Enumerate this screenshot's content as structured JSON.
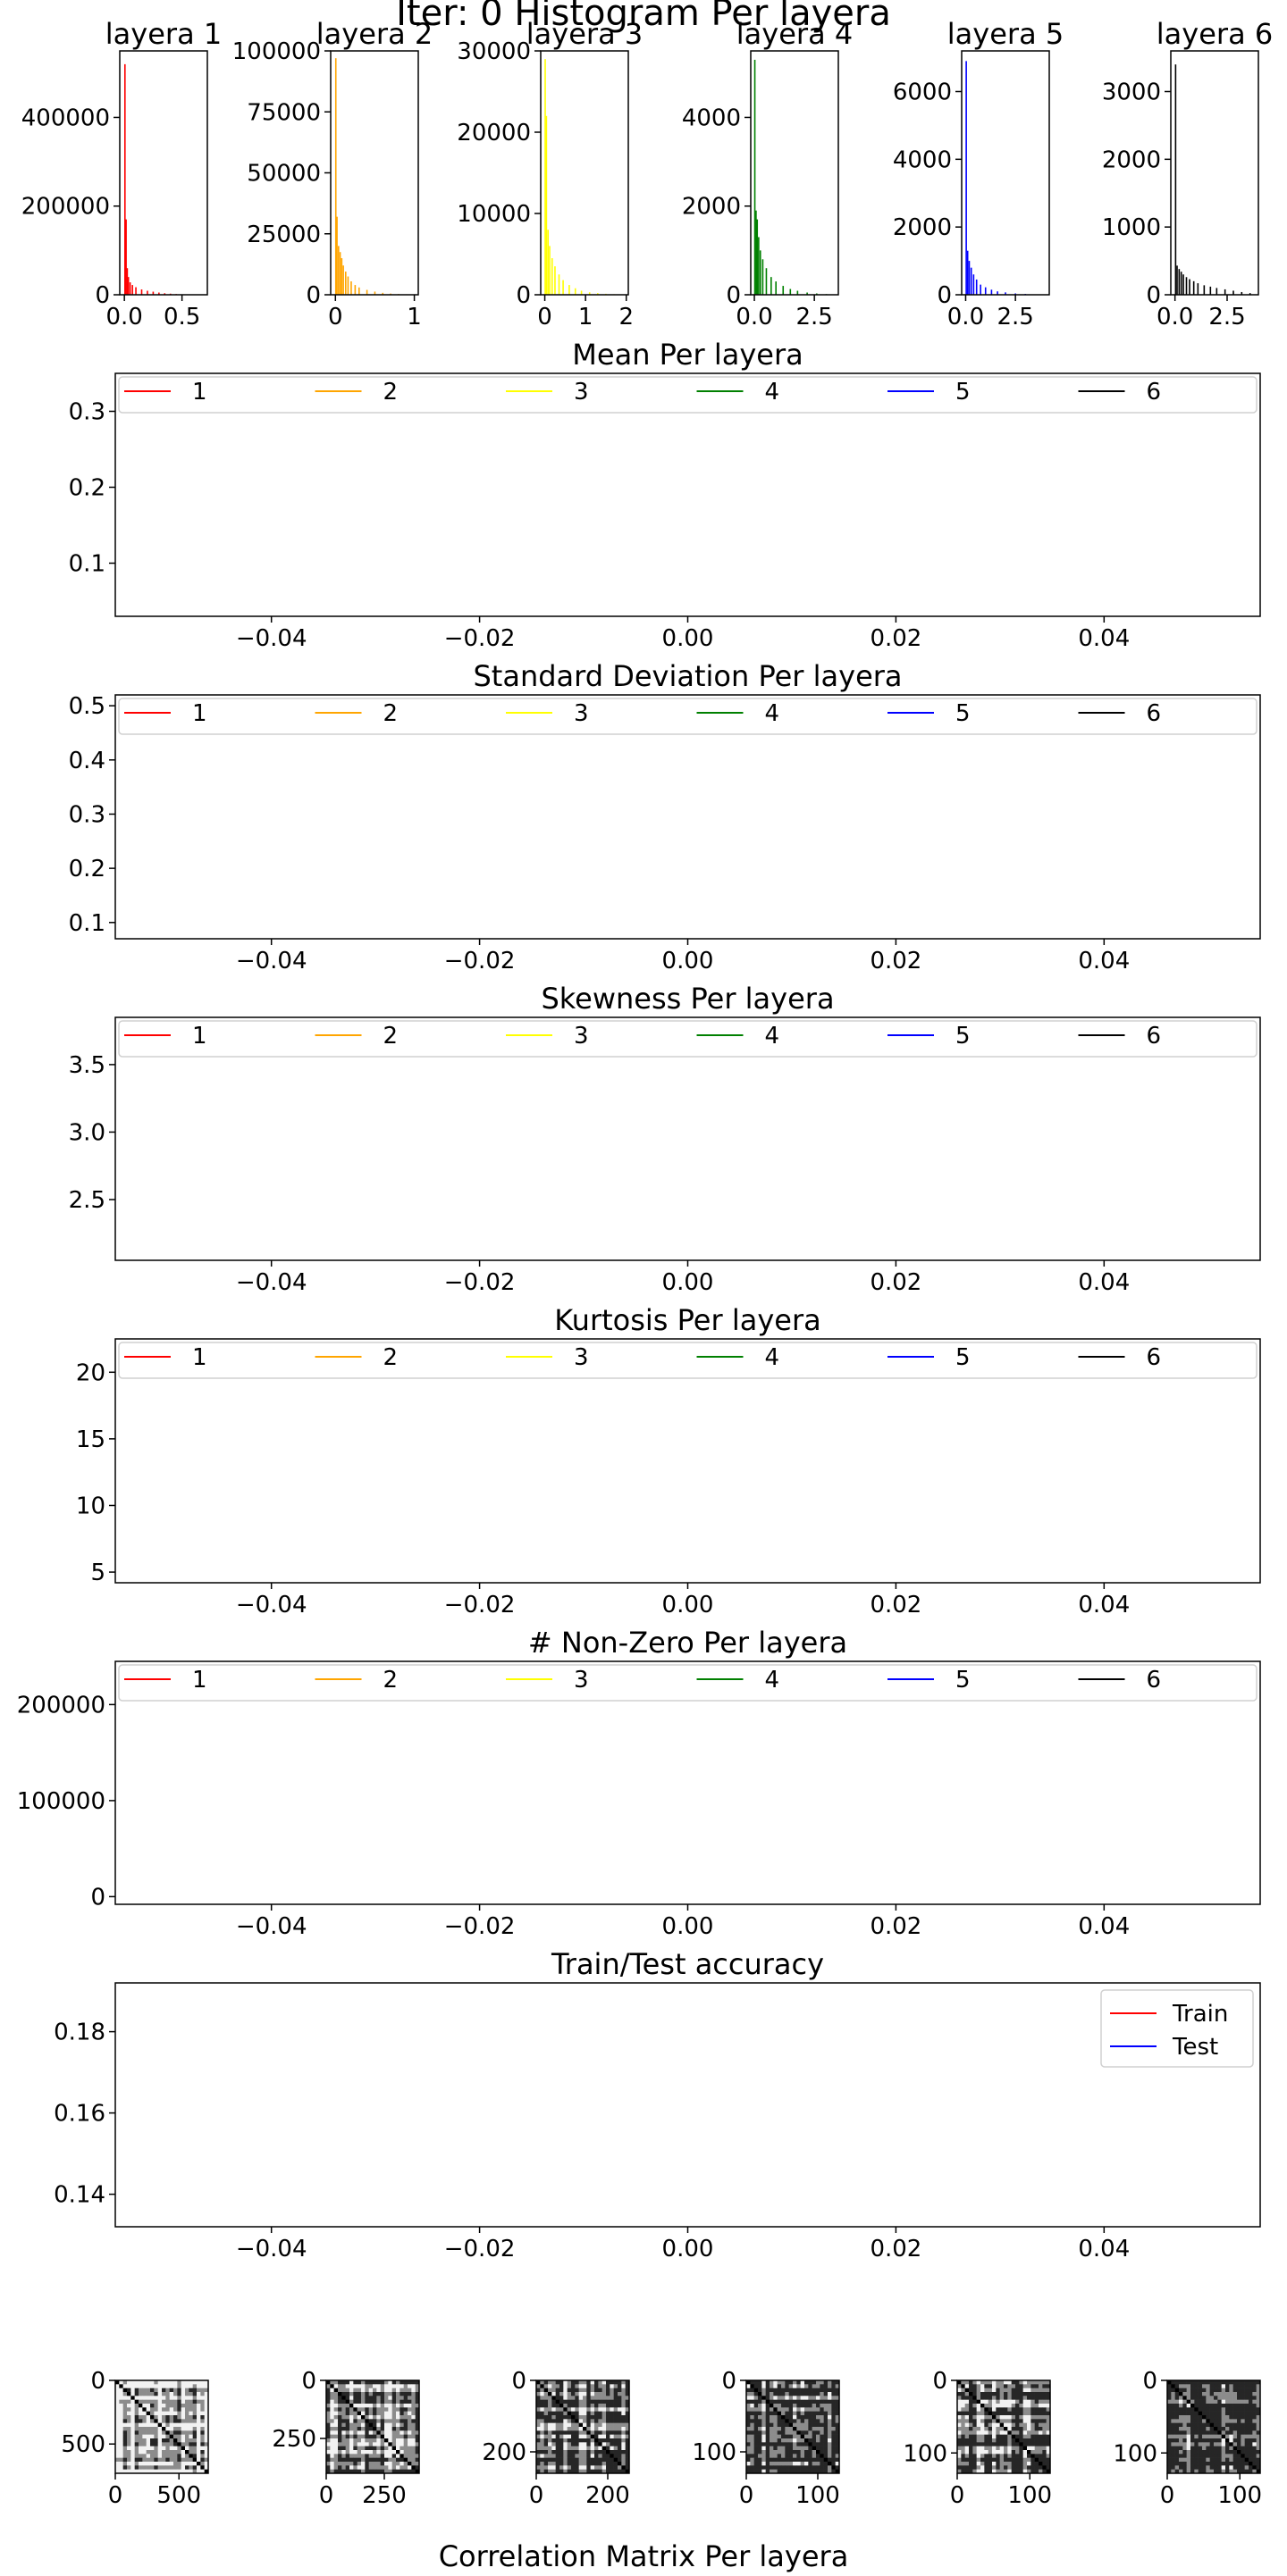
{
  "figure_title": "Iter: 0 Histogram Per layera",
  "bottom_title": "Correlation Matrix Per layera",
  "chart_data": [
    {
      "type": "bar",
      "title": "layera 1",
      "color": "#ff0000",
      "xlim": [
        -0.04,
        0.72
      ],
      "xticks": [
        0.0,
        0.5
      ],
      "xtick_labels": [
        "0.0",
        "0.5"
      ],
      "ylim": [
        0,
        550000
      ],
      "yticks": [
        0,
        200000,
        400000
      ],
      "ytick_labels": [
        "0",
        "200000",
        "400000"
      ],
      "values": [
        [
          0.005,
          520000
        ],
        [
          0.015,
          170000
        ],
        [
          0.025,
          60000
        ],
        [
          0.035,
          40000
        ],
        [
          0.05,
          28000
        ],
        [
          0.07,
          22000
        ],
        [
          0.1,
          17000
        ],
        [
          0.15,
          12000
        ],
        [
          0.2,
          9000
        ],
        [
          0.25,
          7000
        ],
        [
          0.3,
          5000
        ],
        [
          0.35,
          3500
        ],
        [
          0.4,
          2500
        ],
        [
          0.45,
          1600
        ],
        [
          0.5,
          1000
        ],
        [
          0.55,
          600
        ],
        [
          0.6,
          300
        ],
        [
          0.65,
          150
        ]
      ]
    },
    {
      "type": "bar",
      "title": "layera 2",
      "color": "#ffa500",
      "xlim": [
        -0.06,
        1.05
      ],
      "xticks": [
        0,
        1
      ],
      "xtick_labels": [
        "0",
        "1"
      ],
      "ylim": [
        0,
        100000
      ],
      "yticks": [
        0,
        25000,
        50000,
        75000,
        100000
      ],
      "ytick_labels": [
        "0",
        "25000",
        "50000",
        "75000",
        "100000"
      ],
      "values": [
        [
          0.005,
          97000
        ],
        [
          0.02,
          32000
        ],
        [
          0.04,
          20000
        ],
        [
          0.06,
          17500
        ],
        [
          0.08,
          15000
        ],
        [
          0.1,
          12000
        ],
        [
          0.13,
          9500
        ],
        [
          0.16,
          7500
        ],
        [
          0.2,
          5500
        ],
        [
          0.25,
          4000
        ],
        [
          0.3,
          3000
        ],
        [
          0.4,
          2000
        ],
        [
          0.5,
          1300
        ],
        [
          0.6,
          800
        ],
        [
          0.7,
          500
        ],
        [
          0.8,
          300
        ],
        [
          0.9,
          200
        ],
        [
          1.0,
          100
        ]
      ]
    },
    {
      "type": "bar",
      "title": "layera 3",
      "color": "#ffff00",
      "xlim": [
        -0.1,
        2.05
      ],
      "xticks": [
        0,
        1,
        2
      ],
      "xtick_labels": [
        "0",
        "1",
        "2"
      ],
      "ylim": [
        0,
        30000
      ],
      "yticks": [
        0,
        10000,
        20000,
        30000
      ],
      "ytick_labels": [
        "0",
        "10000",
        "20000",
        "30000"
      ],
      "values": [
        [
          0.01,
          29000
        ],
        [
          0.04,
          22000
        ],
        [
          0.08,
          8000
        ],
        [
          0.12,
          6000
        ],
        [
          0.18,
          4500
        ],
        [
          0.25,
          3500
        ],
        [
          0.35,
          2500
        ],
        [
          0.45,
          1800
        ],
        [
          0.6,
          1200
        ],
        [
          0.75,
          800
        ],
        [
          0.9,
          500
        ],
        [
          1.1,
          300
        ],
        [
          1.3,
          200
        ],
        [
          1.5,
          120
        ],
        [
          1.7,
          70
        ],
        [
          1.9,
          40
        ]
      ]
    },
    {
      "type": "bar",
      "title": "layera 4",
      "color": "#008000",
      "xlim": [
        -0.15,
        3.5
      ],
      "xticks": [
        0.0,
        2.5
      ],
      "xtick_labels": [
        "0.0",
        "2.5"
      ],
      "ylim": [
        0,
        5500
      ],
      "yticks": [
        0,
        2000,
        4000
      ],
      "ytick_labels": [
        "0",
        "2000",
        "4000"
      ],
      "values": [
        [
          0.02,
          5300
        ],
        [
          0.07,
          1900
        ],
        [
          0.12,
          1700
        ],
        [
          0.18,
          1300
        ],
        [
          0.25,
          1000
        ],
        [
          0.35,
          800
        ],
        [
          0.5,
          600
        ],
        [
          0.7,
          400
        ],
        [
          0.9,
          300
        ],
        [
          1.2,
          200
        ],
        [
          1.5,
          130
        ],
        [
          1.8,
          90
        ],
        [
          2.2,
          50
        ],
        [
          2.6,
          30
        ],
        [
          3.0,
          15
        ]
      ]
    },
    {
      "type": "bar",
      "title": "layera 5",
      "color": "#0000ff",
      "xlim": [
        -0.2,
        4.2
      ],
      "xticks": [
        0.0,
        2.5
      ],
      "xtick_labels": [
        "0.0",
        "2.5"
      ],
      "ylim": [
        0,
        7200
      ],
      "yticks": [
        0,
        2000,
        4000,
        6000
      ],
      "ytick_labels": [
        "0",
        "2000",
        "4000",
        "6000"
      ],
      "values": [
        [
          0.03,
          6900
        ],
        [
          0.1,
          1300
        ],
        [
          0.18,
          1000
        ],
        [
          0.28,
          800
        ],
        [
          0.4,
          600
        ],
        [
          0.55,
          450
        ],
        [
          0.75,
          300
        ],
        [
          1.0,
          220
        ],
        [
          1.3,
          150
        ],
        [
          1.6,
          100
        ],
        [
          2.0,
          70
        ],
        [
          2.5,
          40
        ],
        [
          3.0,
          25
        ],
        [
          3.5,
          10
        ]
      ]
    },
    {
      "type": "bar",
      "title": "layera 6",
      "color": "#000000",
      "xlim": [
        -0.2,
        4.0
      ],
      "xticks": [
        0.0,
        2.5
      ],
      "xtick_labels": [
        "0.0",
        "2.5"
      ],
      "ylim": [
        0,
        3600
      ],
      "yticks": [
        0,
        1000,
        2000,
        3000
      ],
      "ytick_labels": [
        "0",
        "1000",
        "2000",
        "3000"
      ],
      "values": [
        [
          0.03,
          3400
        ],
        [
          0.1,
          430
        ],
        [
          0.2,
          380
        ],
        [
          0.3,
          340
        ],
        [
          0.4,
          300
        ],
        [
          0.55,
          260
        ],
        [
          0.7,
          230
        ],
        [
          0.9,
          200
        ],
        [
          1.1,
          170
        ],
        [
          1.4,
          140
        ],
        [
          1.7,
          120
        ],
        [
          2.0,
          100
        ],
        [
          2.4,
          80
        ],
        [
          2.8,
          60
        ],
        [
          3.2,
          40
        ],
        [
          3.6,
          25
        ]
      ]
    },
    {
      "type": "line",
      "title": "Mean Per layera",
      "xlim": [
        -0.055,
        0.055
      ],
      "xticks": [
        -0.04,
        -0.02,
        0.0,
        0.02,
        0.04
      ],
      "xtick_labels": [
        "−0.04",
        "−0.02",
        "0.00",
        "0.02",
        "0.04"
      ],
      "ylim": [
        0.03,
        0.35
      ],
      "yticks": [
        0.1,
        0.2,
        0.3
      ],
      "ytick_labels": [
        "0.1",
        "0.2",
        "0.3"
      ],
      "series": [
        {
          "name": "1",
          "color": "#ff0000"
        },
        {
          "name": "2",
          "color": "#ffa500"
        },
        {
          "name": "3",
          "color": "#ffff00"
        },
        {
          "name": "4",
          "color": "#008000"
        },
        {
          "name": "5",
          "color": "#0000ff"
        },
        {
          "name": "6",
          "color": "#000000"
        }
      ]
    },
    {
      "type": "line",
      "title": "Standard Deviation Per layera",
      "xlim": [
        -0.055,
        0.055
      ],
      "xticks": [
        -0.04,
        -0.02,
        0.0,
        0.02,
        0.04
      ],
      "xtick_labels": [
        "−0.04",
        "−0.02",
        "0.00",
        "0.02",
        "0.04"
      ],
      "ylim": [
        0.07,
        0.52
      ],
      "yticks": [
        0.1,
        0.2,
        0.3,
        0.4,
        0.5
      ],
      "ytick_labels": [
        "0.1",
        "0.2",
        "0.3",
        "0.4",
        "0.5"
      ],
      "series": [
        {
          "name": "1",
          "color": "#ff0000"
        },
        {
          "name": "2",
          "color": "#ffa500"
        },
        {
          "name": "3",
          "color": "#ffff00"
        },
        {
          "name": "4",
          "color": "#008000"
        },
        {
          "name": "5",
          "color": "#0000ff"
        },
        {
          "name": "6",
          "color": "#000000"
        }
      ]
    },
    {
      "type": "line",
      "title": "Skewness Per layera",
      "xlim": [
        -0.055,
        0.055
      ],
      "xticks": [
        -0.04,
        -0.02,
        0.0,
        0.02,
        0.04
      ],
      "xtick_labels": [
        "−0.04",
        "−0.02",
        "0.00",
        "0.02",
        "0.04"
      ],
      "ylim": [
        2.05,
        3.85
      ],
      "yticks": [
        2.5,
        3.0,
        3.5
      ],
      "ytick_labels": [
        "2.5",
        "3.0",
        "3.5"
      ],
      "series": [
        {
          "name": "1",
          "color": "#ff0000"
        },
        {
          "name": "2",
          "color": "#ffa500"
        },
        {
          "name": "3",
          "color": "#ffff00"
        },
        {
          "name": "4",
          "color": "#008000"
        },
        {
          "name": "5",
          "color": "#0000ff"
        },
        {
          "name": "6",
          "color": "#000000"
        }
      ]
    },
    {
      "type": "line",
      "title": "Kurtosis Per layera",
      "xlim": [
        -0.055,
        0.055
      ],
      "xticks": [
        -0.04,
        -0.02,
        0.0,
        0.02,
        0.04
      ],
      "xtick_labels": [
        "−0.04",
        "−0.02",
        "0.00",
        "0.02",
        "0.04"
      ],
      "ylim": [
        4.2,
        22.5
      ],
      "yticks": [
        5,
        10,
        15,
        20
      ],
      "ytick_labels": [
        "5",
        "10",
        "15",
        "20"
      ],
      "series": [
        {
          "name": "1",
          "color": "#ff0000"
        },
        {
          "name": "2",
          "color": "#ffa500"
        },
        {
          "name": "3",
          "color": "#ffff00"
        },
        {
          "name": "4",
          "color": "#008000"
        },
        {
          "name": "5",
          "color": "#0000ff"
        },
        {
          "name": "6",
          "color": "#000000"
        }
      ]
    },
    {
      "type": "line",
      "title": "# Non-Zero Per layera",
      "xlim": [
        -0.055,
        0.055
      ],
      "xticks": [
        -0.04,
        -0.02,
        0.0,
        0.02,
        0.04
      ],
      "xtick_labels": [
        "−0.04",
        "−0.02",
        "0.00",
        "0.02",
        "0.04"
      ],
      "ylim": [
        -8000,
        245000
      ],
      "yticks": [
        0,
        100000,
        200000
      ],
      "ytick_labels": [
        "0",
        "100000",
        "200000"
      ],
      "series": [
        {
          "name": "1",
          "color": "#ff0000"
        },
        {
          "name": "2",
          "color": "#ffa500"
        },
        {
          "name": "3",
          "color": "#ffff00"
        },
        {
          "name": "4",
          "color": "#008000"
        },
        {
          "name": "5",
          "color": "#0000ff"
        },
        {
          "name": "6",
          "color": "#000000"
        }
      ]
    },
    {
      "type": "line",
      "title": "Train/Test accuracy",
      "xlim": [
        -0.055,
        0.055
      ],
      "xticks": [
        -0.04,
        -0.02,
        0.0,
        0.02,
        0.04
      ],
      "xtick_labels": [
        "−0.04",
        "−0.02",
        "0.00",
        "0.02",
        "0.04"
      ],
      "ylim": [
        0.132,
        0.192
      ],
      "yticks": [
        0.14,
        0.16,
        0.18
      ],
      "ytick_labels": [
        "0.14",
        "0.16",
        "0.18"
      ],
      "legend": "top-right",
      "series": [
        {
          "name": "Train",
          "color": "#ff0000"
        },
        {
          "name": "Test",
          "color": "#0000ff"
        }
      ]
    },
    {
      "type": "heatmap",
      "size": 730,
      "xticks": [
        0,
        500
      ],
      "xtick_labels": [
        "0",
        "500"
      ],
      "yticks": [
        0,
        500
      ],
      "ytick_labels": [
        "0",
        "500"
      ],
      "density": 0.18
    },
    {
      "type": "heatmap",
      "size": 400,
      "xticks": [
        0,
        250
      ],
      "xtick_labels": [
        "0",
        "250"
      ],
      "yticks": [
        0,
        250
      ],
      "ytick_labels": [
        "0",
        "250"
      ],
      "density": 0.3
    },
    {
      "type": "heatmap",
      "size": 260,
      "xticks": [
        0,
        200
      ],
      "xtick_labels": [
        "0",
        "200"
      ],
      "yticks": [
        0,
        200
      ],
      "ytick_labels": [
        "0",
        "200"
      ],
      "density": 0.45
    },
    {
      "type": "heatmap",
      "size": 130,
      "xticks": [
        0,
        100
      ],
      "xtick_labels": [
        "0",
        "100"
      ],
      "yticks": [
        0,
        100
      ],
      "ytick_labels": [
        "0",
        "100"
      ],
      "density": 0.5
    },
    {
      "type": "heatmap",
      "size": 128,
      "xticks": [
        0,
        100
      ],
      "xtick_labels": [
        "0",
        "100"
      ],
      "yticks": [
        0,
        100
      ],
      "ytick_labels": [
        "0",
        "100"
      ],
      "density": 0.5
    },
    {
      "type": "heatmap",
      "size": 128,
      "xticks": [
        0,
        100
      ],
      "xtick_labels": [
        "0",
        "100"
      ],
      "yticks": [
        0,
        100
      ],
      "ytick_labels": [
        "0",
        "100"
      ],
      "density": 0.55
    }
  ]
}
